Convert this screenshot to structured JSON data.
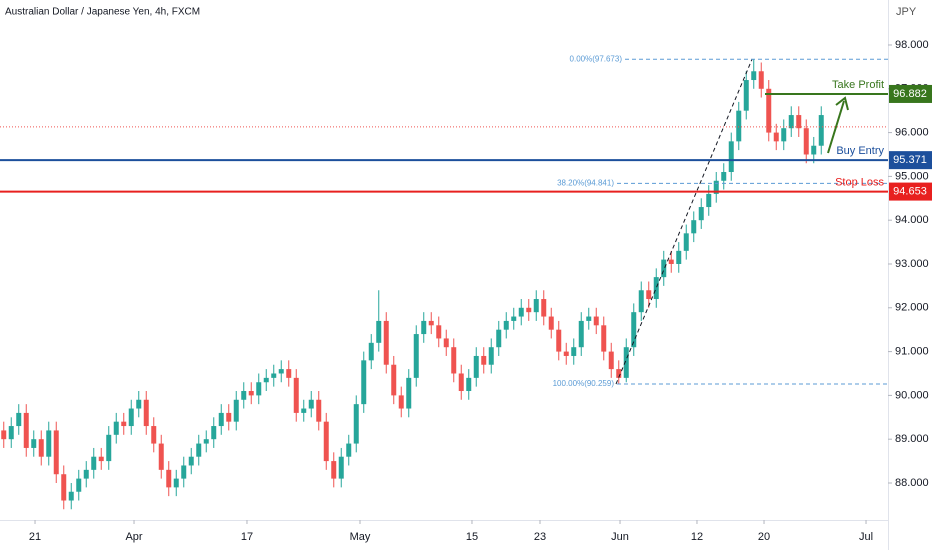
{
  "chart_data": {
    "type": "candlestick",
    "title": "Australian Dollar / Japanese Yen, 4h, FXCM",
    "y_axis_label": "JPY",
    "up_color": "#26a69a",
    "down_color": "#ef5350",
    "ylim": [
      87.155,
      99.027
    ],
    "yticks": [
      {
        "value": 88,
        "label": "88.000"
      },
      {
        "value": 89,
        "label": "89.000"
      },
      {
        "value": 90,
        "label": "90.000"
      },
      {
        "value": 91,
        "label": "91.000"
      },
      {
        "value": 92,
        "label": "92.000"
      },
      {
        "value": 93,
        "label": "93.000"
      },
      {
        "value": 94,
        "label": "94.000"
      },
      {
        "value": 95,
        "label": "95.000"
      },
      {
        "value": 96,
        "label": "96.000"
      },
      {
        "value": 97,
        "label": "97.000"
      },
      {
        "value": 98,
        "label": "98.000"
      }
    ],
    "xlim": [
      0,
      118.4
    ],
    "xticks": [
      {
        "value": 4.67,
        "label": "21"
      },
      {
        "value": 17.87,
        "label": "Apr"
      },
      {
        "value": 32.93,
        "label": "17"
      },
      {
        "value": 48,
        "label": "May"
      },
      {
        "value": 62.93,
        "label": "15"
      },
      {
        "value": 72,
        "label": "23"
      },
      {
        "value": 82.67,
        "label": "Jun"
      },
      {
        "value": 92.93,
        "label": "12"
      },
      {
        "value": 101.87,
        "label": "20"
      },
      {
        "value": 115.47,
        "label": "Jul"
      }
    ],
    "open": [
      89.2,
      89.0,
      89.3,
      89.6,
      88.8,
      89.0,
      88.6,
      89.2,
      88.2,
      87.6,
      87.8,
      88.1,
      88.3,
      88.6,
      88.5,
      89.1,
      89.4,
      89.3,
      89.7,
      89.9,
      89.3,
      88.9,
      88.3,
      87.9,
      88.1,
      88.4,
      88.6,
      88.9,
      89.0,
      89.3,
      89.6,
      89.4,
      89.9,
      90.1,
      90.0,
      90.3,
      90.4,
      90.5,
      90.6,
      90.4,
      89.6,
      89.7,
      89.9,
      89.4,
      88.5,
      88.1,
      88.6,
      88.9,
      89.8,
      90.8,
      91.2,
      91.7,
      90.7,
      90.0,
      89.7,
      90.4,
      91.4,
      91.7,
      91.6,
      91.3,
      91.1,
      90.5,
      90.1,
      90.4,
      90.9,
      90.7,
      91.1,
      91.5,
      91.7,
      91.8,
      92.0,
      91.9,
      92.2,
      91.8,
      91.5,
      91.0,
      90.9,
      91.1,
      91.7,
      91.8,
      91.6,
      91.0,
      90.6,
      90.4,
      91.1,
      91.9,
      92.4,
      92.2,
      92.7,
      93.1,
      93.0,
      93.3,
      93.7,
      94.0,
      94.3,
      94.6,
      94.9,
      95.1,
      95.8,
      96.5,
      97.2,
      97.4,
      97.0,
      96.0,
      95.8,
      96.1,
      96.4,
      96.1,
      95.5,
      95.7
    ],
    "high": [
      89.4,
      89.5,
      89.8,
      89.8,
      89.2,
      89.2,
      89.4,
      89.4,
      88.4,
      88.0,
      88.3,
      88.5,
      88.8,
      88.8,
      89.3,
      89.6,
      89.6,
      89.9,
      90.1,
      90.1,
      89.5,
      89.1,
      88.5,
      88.3,
      88.6,
      88.8,
      89.1,
      89.2,
      89.5,
      89.8,
      89.8,
      90.1,
      90.3,
      90.3,
      90.5,
      90.6,
      90.7,
      90.8,
      90.8,
      90.6,
      89.9,
      90.1,
      90.1,
      89.6,
      88.7,
      88.8,
      89.1,
      90.0,
      91.0,
      91.4,
      92.4,
      91.9,
      90.9,
      90.2,
      90.6,
      91.6,
      91.9,
      91.9,
      91.8,
      91.5,
      91.3,
      90.7,
      90.6,
      91.1,
      91.1,
      91.3,
      91.7,
      91.9,
      92.0,
      92.2,
      92.2,
      92.4,
      92.4,
      92.0,
      91.7,
      91.2,
      91.3,
      91.9,
      92.0,
      92.0,
      91.8,
      91.2,
      90.8,
      91.3,
      92.1,
      92.6,
      92.6,
      92.9,
      93.3,
      93.3,
      93.5,
      93.9,
      94.2,
      94.5,
      94.8,
      95.1,
      95.3,
      96.0,
      96.7,
      97.4,
      97.673,
      97.6,
      97.2,
      96.2,
      96.3,
      96.6,
      96.6,
      96.3,
      95.9,
      96.6
    ],
    "low": [
      88.8,
      88.8,
      89.1,
      88.6,
      88.6,
      88.4,
      88.4,
      88.0,
      87.4,
      87.4,
      87.6,
      87.9,
      88.1,
      88.3,
      88.3,
      88.9,
      89.1,
      89.1,
      89.5,
      89.1,
      88.7,
      88.1,
      87.7,
      87.7,
      87.9,
      88.2,
      88.4,
      88.7,
      88.8,
      89.1,
      89.2,
      89.2,
      89.7,
      89.8,
      89.8,
      90.1,
      90.2,
      90.3,
      90.2,
      89.4,
      89.4,
      89.5,
      89.2,
      88.3,
      87.9,
      87.9,
      88.4,
      88.7,
      89.6,
      90.6,
      91.0,
      90.5,
      89.8,
      89.5,
      89.5,
      90.2,
      91.2,
      91.4,
      91.1,
      90.9,
      90.3,
      89.9,
      89.9,
      90.2,
      90.5,
      90.5,
      90.9,
      91.3,
      91.5,
      91.6,
      91.7,
      91.7,
      91.6,
      91.3,
      90.8,
      90.7,
      90.7,
      90.9,
      91.5,
      91.4,
      90.8,
      90.4,
      90.259,
      90.3,
      90.9,
      91.7,
      92.0,
      92.0,
      92.5,
      92.8,
      92.8,
      93.1,
      93.5,
      93.8,
      94.1,
      94.4,
      94.7,
      94.9,
      95.6,
      96.3,
      97.0,
      96.8,
      95.8,
      95.6,
      95.6,
      95.9,
      95.9,
      95.3,
      95.3,
      95.5
    ],
    "close": [
      89.0,
      89.3,
      89.6,
      88.8,
      89.0,
      88.6,
      89.2,
      88.2,
      87.6,
      87.8,
      88.1,
      88.3,
      88.6,
      88.5,
      89.1,
      89.4,
      89.3,
      89.7,
      89.9,
      89.3,
      88.9,
      88.3,
      87.9,
      88.1,
      88.4,
      88.6,
      88.9,
      89.0,
      89.3,
      89.6,
      89.4,
      89.9,
      90.1,
      90.0,
      90.3,
      90.4,
      90.5,
      90.6,
      90.4,
      89.6,
      89.7,
      89.9,
      89.4,
      88.5,
      88.1,
      88.6,
      88.9,
      89.8,
      90.8,
      91.2,
      91.7,
      90.7,
      90.0,
      89.7,
      90.4,
      91.4,
      91.7,
      91.6,
      91.3,
      91.1,
      90.5,
      90.1,
      90.4,
      90.9,
      90.7,
      91.1,
      91.5,
      91.7,
      91.8,
      92.0,
      91.9,
      92.2,
      91.8,
      91.5,
      91.0,
      90.9,
      91.1,
      91.7,
      91.8,
      91.6,
      91.0,
      90.6,
      90.4,
      91.1,
      91.9,
      92.4,
      92.2,
      92.7,
      93.1,
      93.0,
      93.3,
      93.7,
      94.0,
      94.3,
      94.6,
      94.9,
      95.1,
      95.8,
      96.5,
      97.2,
      97.4,
      97.0,
      96.0,
      95.8,
      96.1,
      96.4,
      96.1,
      95.5,
      95.7,
      96.4
    ],
    "price_line": {
      "value": 96.13,
      "color": "#ef5350"
    },
    "levels": [
      {
        "name": "Take Profit",
        "value": 96.882,
        "color": "#38761d"
      },
      {
        "name": "Buy Entry",
        "value": 95.371,
        "color": "#1c4f9c"
      },
      {
        "name": "Stop Loss",
        "value": 94.653,
        "color": "#e8201f"
      }
    ],
    "fib_levels": [
      {
        "value": 97.673,
        "label": "0.00%(97.673)"
      },
      {
        "value": 94.841,
        "label": "38.20%(94.841)"
      },
      {
        "value": 90.259,
        "label": "100.00%(90.259)"
      }
    ],
    "fib_color": "#5b9bd5"
  }
}
